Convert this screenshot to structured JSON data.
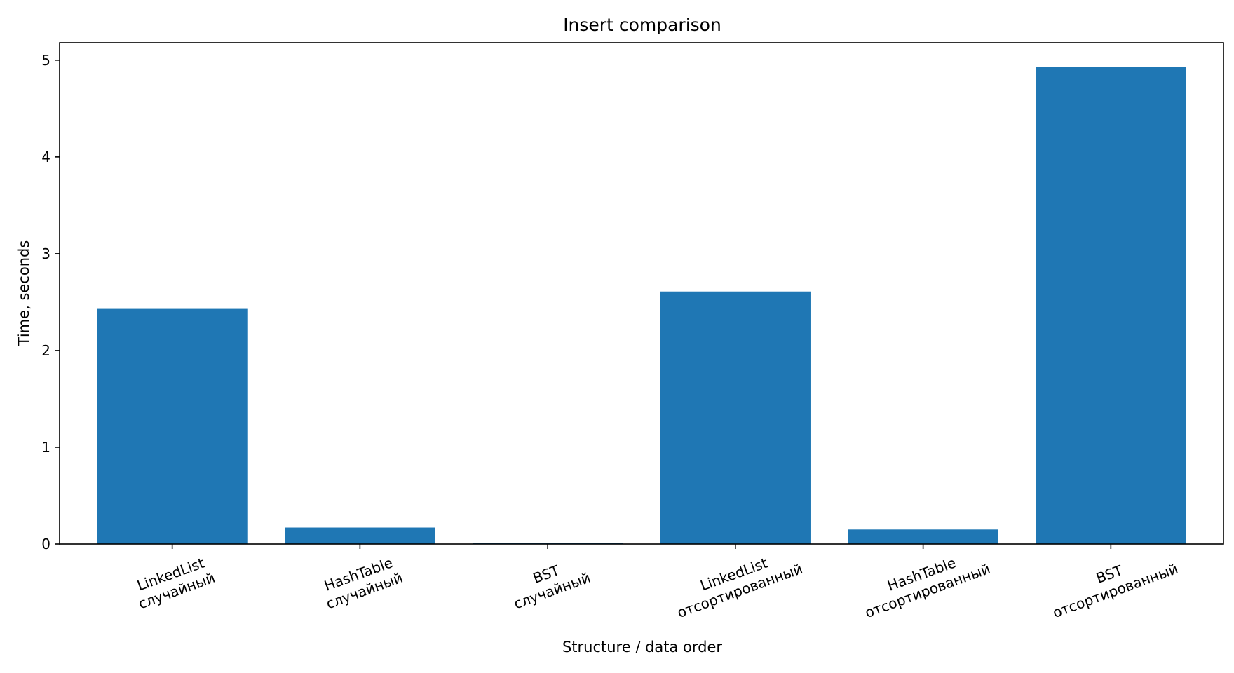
{
  "chart_data": {
    "type": "bar",
    "title": "Insert comparison",
    "xlabel": "Structure / data order",
    "ylabel": "Time, seconds",
    "categories": [
      [
        "LinkedList",
        "случайный"
      ],
      [
        "HashTable",
        "случайный"
      ],
      [
        "BST",
        "случайный"
      ],
      [
        "LinkedList",
        "отсортированный"
      ],
      [
        "HashTable",
        "отсортированный"
      ],
      [
        "BST",
        "отсортированный"
      ]
    ],
    "values": [
      2.43,
      0.17,
      0.01,
      2.61,
      0.15,
      4.93
    ],
    "ylim": [
      0,
      5.18
    ],
    "yticks": [
      "0",
      "1",
      "2",
      "3",
      "4",
      "5"
    ],
    "grid": false,
    "bar_color": "#1f77b4"
  }
}
